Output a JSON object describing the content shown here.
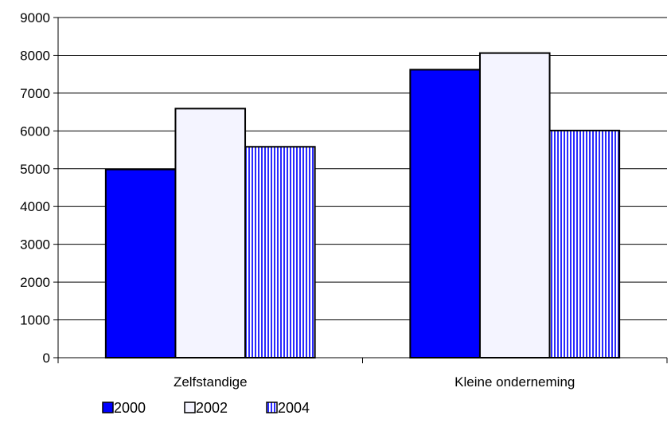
{
  "chart_data": {
    "type": "bar",
    "categories": [
      "Zelfstandige",
      "Kleine onderneming"
    ],
    "series": [
      {
        "name": "2000",
        "values": [
          4980,
          7620
        ],
        "color": "#0000ff",
        "pattern": "solid"
      },
      {
        "name": "2002",
        "values": [
          6590,
          8060
        ],
        "color": "#f4f4ff",
        "pattern": "solid"
      },
      {
        "name": "2004",
        "values": [
          5580,
          6010
        ],
        "color": "#2a2aff",
        "pattern": "vertical-stripes"
      }
    ],
    "y_ticks": [
      "0",
      "1000",
      "2000",
      "3000",
      "4000",
      "5000",
      "6000",
      "7000",
      "8000",
      "9000"
    ],
    "ylim": [
      0,
      9000
    ],
    "grid": true,
    "legend_position": "bottom-left",
    "title": "",
    "xlabel": "",
    "ylabel": ""
  }
}
